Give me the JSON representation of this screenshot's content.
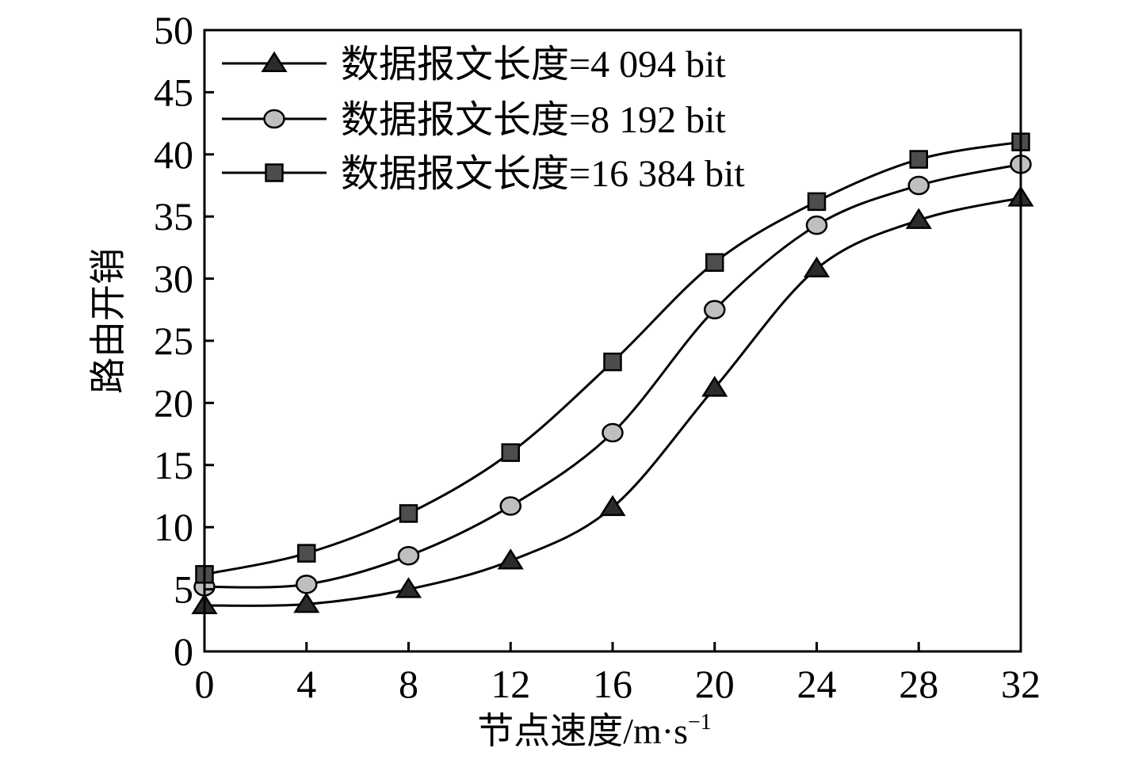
{
  "chart_data": {
    "type": "line",
    "title": "",
    "xlabel": "节点速度/m·s",
    "xlabel_superscript": "−1",
    "ylabel": "路由开销",
    "xlim": [
      0,
      32
    ],
    "ylim": [
      0,
      50
    ],
    "x_ticks": [
      0,
      4,
      8,
      12,
      16,
      20,
      24,
      28,
      32
    ],
    "y_ticks": [
      0,
      5,
      10,
      15,
      20,
      25,
      30,
      35,
      40,
      45,
      50
    ],
    "x_tick_labels": [
      "0",
      "4",
      "8",
      "12",
      "16",
      "20",
      "24",
      "28",
      "32"
    ],
    "y_tick_labels": [
      "0",
      "5",
      "10",
      "15",
      "20",
      "25",
      "30",
      "35",
      "40",
      "45",
      "50"
    ],
    "grid": false,
    "legend_position": "top-left",
    "x": [
      0,
      4,
      8,
      12,
      16,
      20,
      24,
      28,
      32
    ],
    "series": [
      {
        "name": "数据报文长度=4 094 bit",
        "marker": "triangle",
        "color": "#2b2b2b",
        "values": [
          3.7,
          3.8,
          5.0,
          7.3,
          11.6,
          21.2,
          30.8,
          34.7,
          36.5
        ]
      },
      {
        "name": "数据报文长度=8 192 bit",
        "marker": "circle",
        "color": "#bfbfbf",
        "values": [
          5.2,
          5.4,
          7.7,
          11.7,
          17.6,
          27.5,
          34.3,
          37.5,
          39.2
        ]
      },
      {
        "name": "数据报文长度=16 384 bit",
        "marker": "square",
        "color": "#4d4d4d",
        "values": [
          6.2,
          7.9,
          11.1,
          16.0,
          23.3,
          31.3,
          36.2,
          39.6,
          41.0
        ]
      }
    ]
  }
}
